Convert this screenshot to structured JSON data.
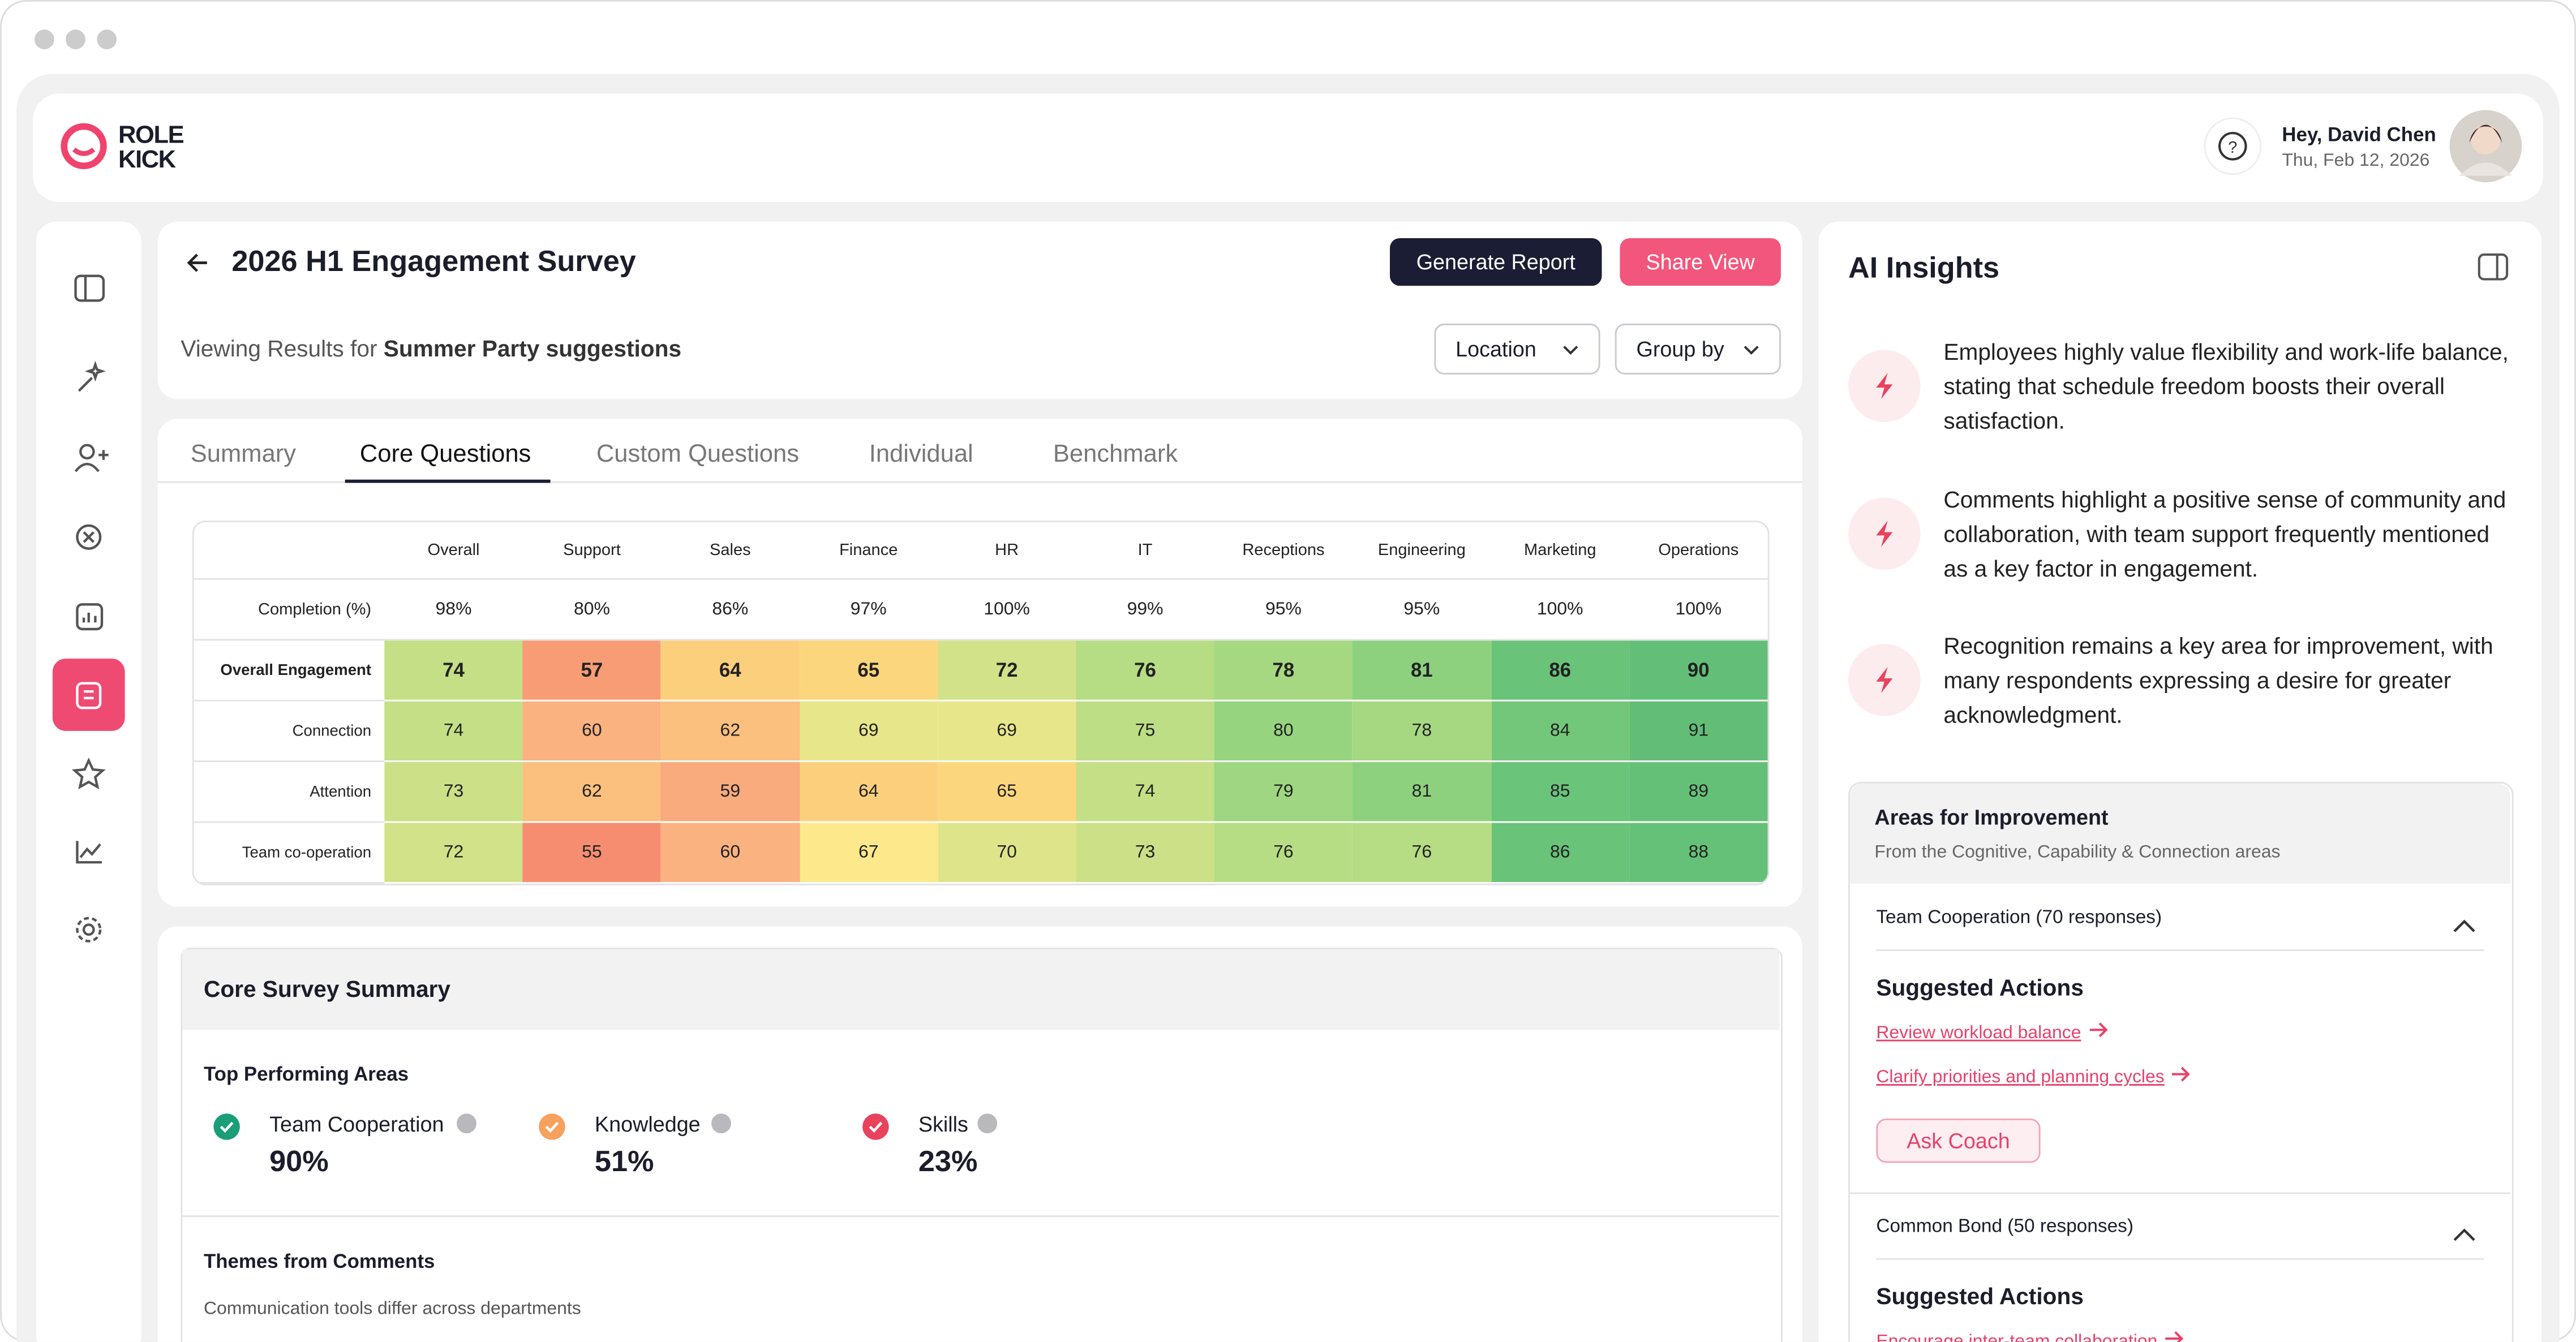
{
  "brand": {
    "line1": "ROLE",
    "line2": "KICK"
  },
  "user": {
    "greeting": "Hey, David Chen",
    "date": "Thu, Feb 12, 2026"
  },
  "survey": {
    "title": "2026 H1 Engagement Survey",
    "buttons": [
      "Generate Report",
      "Share View"
    ],
    "viewing_prefix": "Viewing Results for",
    "viewing_subject": "Summer Party suggestions",
    "filters": [
      "Location",
      "Group by"
    ]
  },
  "tabs": {
    "items": [
      "Summary",
      "Core Questions",
      "Custom Questions",
      "Individual",
      "Benchmark"
    ],
    "active": 1
  },
  "heatmap": {
    "columns": [
      "Overall",
      "Support",
      "Sales",
      "Finance",
      "HR",
      "IT",
      "Receptions",
      "Engineering",
      "Marketing",
      "Operations"
    ],
    "completion": {
      "label": "Completion (%)",
      "values": [
        "98%",
        "80%",
        "86%",
        "97%",
        "100%",
        "99%",
        "95%",
        "95%",
        "100%",
        "100%"
      ]
    },
    "rows": [
      {
        "label": "Overall Engagement",
        "values": [
          74,
          57,
          64,
          65,
          72,
          76,
          78,
          81,
          86,
          90
        ]
      },
      {
        "label": "Connection",
        "values": [
          74,
          60,
          62,
          69,
          69,
          75,
          80,
          78,
          84,
          91
        ]
      },
      {
        "label": "Attention",
        "values": [
          73,
          62,
          59,
          64,
          65,
          74,
          79,
          81,
          85,
          89
        ]
      },
      {
        "label": "Team co-operation",
        "values": [
          72,
          55,
          60,
          67,
          70,
          73,
          76,
          76,
          86,
          88
        ]
      }
    ]
  },
  "summary": {
    "title": "Core Survey Summary",
    "top_title": "Top Performing Areas",
    "areas": [
      {
        "name": "Team Cooperation",
        "value": "90%"
      },
      {
        "name": "Knowledge",
        "value": "51%"
      },
      {
        "name": "Skills",
        "value": "23%"
      }
    ],
    "themes_title": "Themes from Comments",
    "themes": [
      "Communication tools differ across departments"
    ]
  },
  "insights": {
    "title": "AI Insights",
    "items": [
      "Employees highly value flexibility and work-life balance, stating that schedule freedom boosts their overall satisfaction.",
      "Comments highlight a positive sense of community and collaboration, with team support frequently mentioned as a key factor in engagement.",
      "Recognition remains a key area for improvement, with many respondents expressing a desire for greater acknowledgment."
    ],
    "improvement": {
      "title": "Areas for Improvement",
      "subtitle": "From the Cognitive, Capability & Connection areas",
      "groups": [
        {
          "name": "Team Cooperation (70 responses)",
          "actions_title": "Suggested Actions",
          "actions": [
            "Review workload balance",
            "Clarify priorities and planning cycles"
          ],
          "coach": "Ask Coach"
        },
        {
          "name": "Common Bond (50 responses)",
          "actions_title": "Suggested Actions",
          "actions": [
            "Encourage inter-team collaboration"
          ]
        }
      ]
    }
  }
}
